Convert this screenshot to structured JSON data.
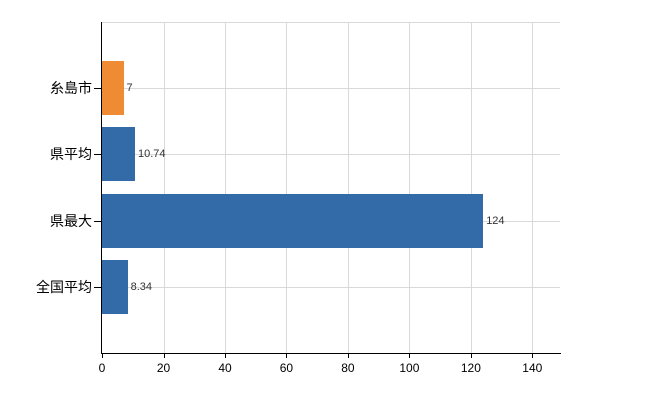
{
  "chart_data": {
    "type": "bar",
    "orientation": "horizontal",
    "title": "",
    "categories": [
      "糸島市",
      "県平均",
      "県最大",
      "全国平均"
    ],
    "values": [
      7,
      10.74,
      124,
      8.34
    ],
    "value_labels": [
      "7",
      "10.74",
      "124",
      "8.34"
    ],
    "bar_colors": [
      "#EE8B33",
      "#336BA9",
      "#336BA9",
      "#336BA9"
    ],
    "x_ticks": [
      0,
      20,
      40,
      60,
      80,
      100,
      120,
      140
    ],
    "xlim": [
      0,
      149
    ],
    "grid": true,
    "legend": false
  },
  "colors": {
    "highlight_bar": "#EE8B33",
    "default_bar": "#336BA9",
    "axis": "#000000",
    "gridline": "#D9D9D9",
    "category_text": "#000000",
    "tick_text": "#000000",
    "value_text": "#333333",
    "background": "#FFFFFF"
  }
}
